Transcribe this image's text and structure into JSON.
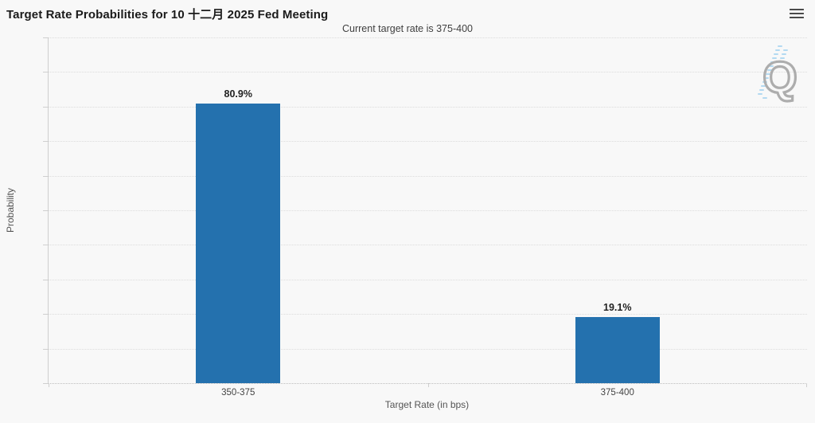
{
  "header": {
    "menu_tooltip": "Chart context menu"
  },
  "watermark": {
    "letter": "Q"
  },
  "chart_data": {
    "type": "bar",
    "title": "Target Rate Probabilities for 10 十二月 2025 Fed Meeting",
    "subtitle": "Current target rate is 375-400",
    "categories": [
      "350-375",
      "375-400"
    ],
    "values": [
      80.9,
      19.1
    ],
    "value_labels": [
      "80.9%",
      "19.1%"
    ],
    "xlabel": "Target Rate (in bps)",
    "ylabel": "Probability",
    "ylim": [
      0,
      100
    ],
    "ytick_step": 10,
    "ytick_suffix": "%",
    "grid": "dotted-horizontal",
    "legend": "none",
    "bar_color": "#2471ae",
    "background_color": "#f8f8f8"
  }
}
